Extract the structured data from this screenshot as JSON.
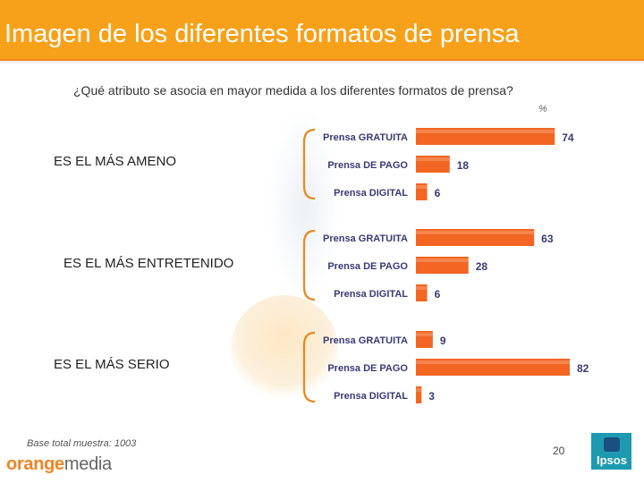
{
  "header": {
    "title": "Imagen de los diferentes formatos de prensa",
    "color": "#f7a11a"
  },
  "question": "¿Qué atributo se asocia en mayor medida a los diferentes formatos de prensa?",
  "percent_unit": "%",
  "base_note": "Base total muestra: 1003",
  "page_number": "20",
  "logos": {
    "orangemedia_orange": "orange",
    "orangemedia_media": "media",
    "ipsos": "Ipsos"
  },
  "chart_data": {
    "type": "bar",
    "orientation": "horizontal",
    "unit": "%",
    "xlim": [
      0,
      100
    ],
    "bar_color": "#f26522",
    "groups": [
      {
        "name": "ES EL MÁS AMENO",
        "categories": [
          "Prensa GRATUITA",
          "Prensa DE PAGO",
          "Prensa DIGITAL"
        ],
        "values": [
          74,
          18,
          6
        ]
      },
      {
        "name": "ES EL MÁS ENTRETENIDO",
        "categories": [
          "Prensa GRATUITA",
          "Prensa DE PAGO",
          "Prensa DIGITAL"
        ],
        "values": [
          63,
          28,
          6
        ]
      },
      {
        "name": "ES EL MÁS SERIO",
        "categories": [
          "Prensa GRATUITA",
          "Prensa DE PAGO",
          "Prensa DIGITAL"
        ],
        "values": [
          9,
          82,
          3
        ]
      }
    ]
  }
}
